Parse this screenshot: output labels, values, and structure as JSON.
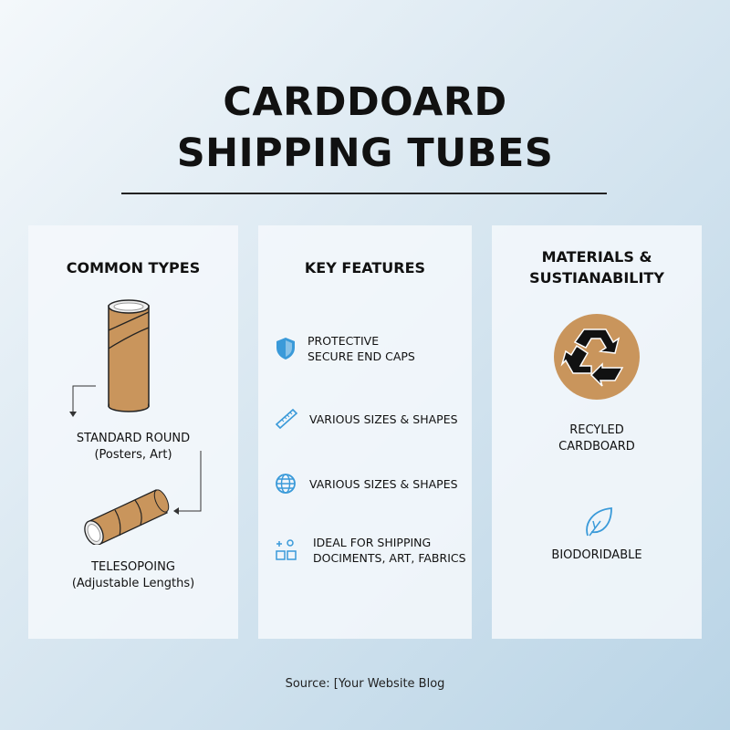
{
  "title": {
    "line1": "CARDDOARD",
    "line2": "SHIPPING TUBES"
  },
  "common_types": {
    "heading": "COMMON TYPES",
    "items": [
      {
        "name": "STANDARD ROUND",
        "desc": "(Posters, Art)"
      },
      {
        "name": "TELESOPOING",
        "desc": "(Adjustable Lengths)"
      }
    ]
  },
  "key_features": {
    "heading": "KEY FEATURES",
    "items": [
      {
        "icon": "shield-icon",
        "line1": "PROTECTIVE",
        "line2": "SECURE END CAPS"
      },
      {
        "icon": "ruler-icon",
        "line1": "VARIOUS SIZES & SHAPES",
        "line2": ""
      },
      {
        "icon": "globe-icon",
        "line1": "VARIOUS SIZES & SHAPES",
        "line2": ""
      },
      {
        "icon": "shipping-icon",
        "line1": "IDEAL FOR SHIPPING",
        "line2": "DOCIMENTS, ART, FABRICS"
      }
    ]
  },
  "materials": {
    "heading1": "MATERIALS &",
    "heading2": "SUSTIANABILITY",
    "items": [
      {
        "icon": "recycle-icon",
        "line1": "RECYLED",
        "line2": "CARDBOARD"
      },
      {
        "icon": "leaf-icon",
        "line1": "BIODORIDABLE"
      }
    ]
  },
  "source": "Source: [Your Website Blog",
  "colors": {
    "accent": "#3a9ad9",
    "cardboard": "#c9955c"
  }
}
